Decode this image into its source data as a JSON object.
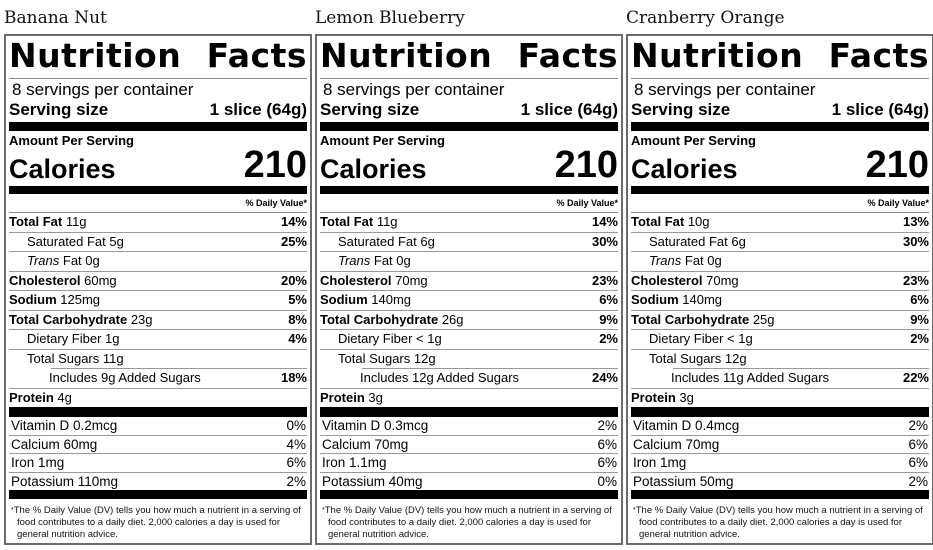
{
  "labels": {
    "nutrition_facts": "Nutrition Facts",
    "nutrition": "Nutrition",
    "facts": "Facts",
    "servings_per_container": "8 servings per container",
    "serving_size_label": "Serving size",
    "serving_size_value": "1 slice (64g)",
    "amount_per_serving": "Amount Per Serving",
    "calories_label": "Calories",
    "daily_value_header": "% Daily Value*",
    "total_fat": "Total Fat",
    "saturated_fat": "Saturated Fat",
    "trans": "Trans",
    "trans_fat_rest": " Fat",
    "cholesterol": "Cholesterol",
    "sodium": "Sodium",
    "total_carbohydrate": "Total Carbohydrate",
    "dietary_fiber": "Dietary Fiber",
    "total_sugars": "Total Sugars",
    "includes": "Includes",
    "added_sugars": "Added Sugars",
    "protein": "Protein",
    "vitamin_d": "Vitamin D",
    "calcium": "Calcium",
    "iron": "Iron",
    "potassium": "Potassium",
    "footnote_star": "*",
    "footnote": "The % Daily Value (DV) tells you how much a nutrient in a serving of food contributes to a daily diet. 2,000 calories a day is used for general nutrition advice."
  },
  "panels": [
    {
      "name": "Banana Nut",
      "calories": "210",
      "total_fat": {
        "amount": " 11g",
        "dv": "14%"
      },
      "saturated_fat": {
        "amount": " 5g",
        "dv": "25%"
      },
      "trans_fat": {
        "amount": " 0g"
      },
      "cholesterol": {
        "amount": " 60mg",
        "dv": "20%"
      },
      "sodium": {
        "amount": " 125mg",
        "dv": "5%"
      },
      "total_carbohydrate": {
        "amount": " 23g",
        "dv": "8%"
      },
      "dietary_fiber": {
        "amount": " 1g",
        "dv": "4%"
      },
      "total_sugars": {
        "amount": " 11g"
      },
      "added_sugars": {
        "amount": " 9g ",
        "dv": "18%"
      },
      "protein": {
        "amount": " 4g"
      },
      "vitamin_d": {
        "amount": " 0.2mcg",
        "dv": "0%"
      },
      "calcium": {
        "amount": " 60mg",
        "dv": "4%"
      },
      "iron": {
        "amount": " 1mg",
        "dv": "6%"
      },
      "potassium": {
        "amount": " 110mg",
        "dv": "2%"
      }
    },
    {
      "name": "Lemon Blueberry",
      "calories": "210",
      "total_fat": {
        "amount": " 11g",
        "dv": "14%"
      },
      "saturated_fat": {
        "amount": " 6g",
        "dv": "30%"
      },
      "trans_fat": {
        "amount": " 0g"
      },
      "cholesterol": {
        "amount": " 70mg",
        "dv": "23%"
      },
      "sodium": {
        "amount": " 140mg",
        "dv": "6%"
      },
      "total_carbohydrate": {
        "amount": " 26g",
        "dv": "9%"
      },
      "dietary_fiber": {
        "amount": " < 1g",
        "dv": "2%"
      },
      "total_sugars": {
        "amount": " 12g"
      },
      "added_sugars": {
        "amount": " 12g ",
        "dv": "24%"
      },
      "protein": {
        "amount": " 3g"
      },
      "vitamin_d": {
        "amount": " 0.3mcg",
        "dv": "2%"
      },
      "calcium": {
        "amount": " 70mg",
        "dv": "6%"
      },
      "iron": {
        "amount": " 1.1mg",
        "dv": "6%"
      },
      "potassium": {
        "amount": " 40mg",
        "dv": "0%"
      }
    },
    {
      "name": "Cranberry Orange",
      "calories": "210",
      "total_fat": {
        "amount": " 10g",
        "dv": "13%"
      },
      "saturated_fat": {
        "amount": " 6g",
        "dv": "30%"
      },
      "trans_fat": {
        "amount": " 0g"
      },
      "cholesterol": {
        "amount": " 70mg",
        "dv": "23%"
      },
      "sodium": {
        "amount": " 140mg",
        "dv": "6%"
      },
      "total_carbohydrate": {
        "amount": " 25g",
        "dv": "9%"
      },
      "dietary_fiber": {
        "amount": " < 1g",
        "dv": "2%"
      },
      "total_sugars": {
        "amount": " 12g"
      },
      "added_sugars": {
        "amount": " 11g ",
        "dv": "22%"
      },
      "protein": {
        "amount": " 3g"
      },
      "vitamin_d": {
        "amount": " 0.4mcg",
        "dv": "2%"
      },
      "calcium": {
        "amount": " 70mg",
        "dv": "6%"
      },
      "iron": {
        "amount": " 1mg",
        "dv": "6%"
      },
      "potassium": {
        "amount": " 50mg",
        "dv": "2%"
      }
    }
  ]
}
